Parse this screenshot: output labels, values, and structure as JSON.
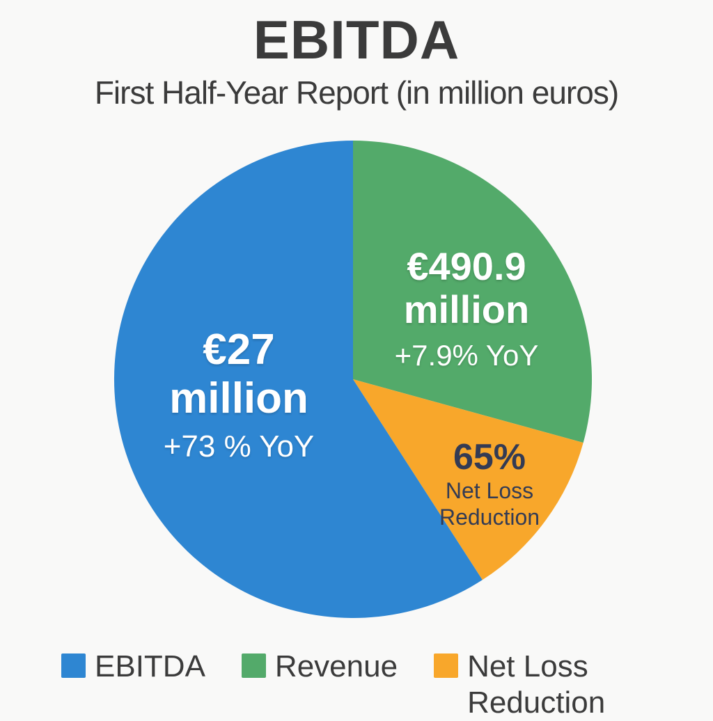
{
  "header": {
    "title": "EBITDA",
    "subtitle": "First Half-Year Report (in million euros)"
  },
  "colors": {
    "ebitda_blue": "#2E86D2",
    "revenue_green": "#53AA6A",
    "net_loss_orange": "#F8A72B",
    "dark_text": "#3B3B3B",
    "navy_label_text": "#333B54",
    "background": "#F9F9F8",
    "slice_label_white": "#FFFFFF"
  },
  "chart_data": {
    "type": "pie",
    "title": "EBITDA",
    "subtitle": "First Half-Year Report (in million euros)",
    "legend_position": "bottom",
    "start_direction": "12-oclock-clockwise",
    "slices": [
      {
        "label": "Revenue",
        "value_text": "€490.9 million",
        "change_text": "+7.9% YoY",
        "color": "#53AA6A",
        "slice_percent": 29.3,
        "start_deg": 0,
        "end_deg": 105.4
      },
      {
        "label": "Net Loss Reduction",
        "value_text": "65%",
        "change_text": "Net Loss Reduction",
        "color": "#F8A72B",
        "slice_percent": 11.6,
        "start_deg": 105.4,
        "end_deg": 147.2
      },
      {
        "label": "EBITDA",
        "value_text": "€27 million",
        "change_text": "+73 % YoY",
        "color": "#2E86D2",
        "slice_percent": 59.1,
        "start_deg": 147.2,
        "end_deg": 360
      }
    ]
  },
  "pie_labels": {
    "ebitda": {
      "line1": "€27",
      "line2": "million",
      "line3": "+73 % YoY"
    },
    "revenue": {
      "line1": "€490.9",
      "line2": "million",
      "line3": "+7.9% YoY"
    },
    "net_loss": {
      "line1": "65%",
      "line2": "Net Loss",
      "line3": "Reduction"
    }
  },
  "legend": {
    "items": [
      {
        "label": "EBITDA",
        "color": "#2E86D2"
      },
      {
        "label": "Revenue",
        "color": "#53AA6A"
      },
      {
        "label": "Net Loss Reduction",
        "color": "#F8A72B"
      }
    ]
  }
}
